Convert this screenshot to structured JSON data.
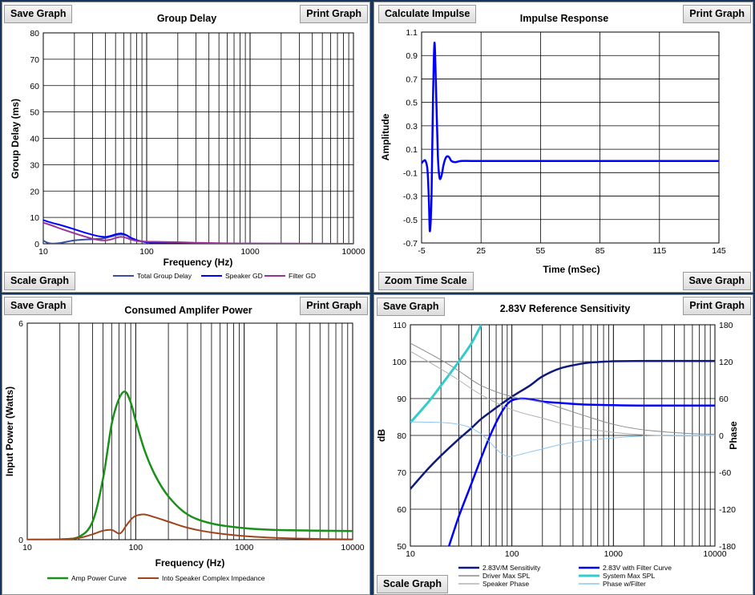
{
  "panels": [
    {
      "title": "Group Delay",
      "buttons": {
        "top_left": "Save Graph",
        "top_right": "Print Graph",
        "bottom_left": "Scale Graph"
      }
    },
    {
      "title": "Impulse Response",
      "buttons": {
        "top_left": "Calculate Impulse",
        "top_right": "Print Graph",
        "bottom_left": "Zoom  Time Scale",
        "bottom_right": "Save Graph"
      }
    },
    {
      "title": "Consumed Amplifer Power",
      "buttons": {
        "top_left": "Save Graph",
        "top_right": "Print Graph"
      }
    },
    {
      "title": "2.83V Reference Sensitivity",
      "buttons": {
        "top_left": "Save Graph",
        "top_right": "Print Graph",
        "bottom_left": "Scale Graph"
      }
    }
  ],
  "chart_data": [
    {
      "type": "line",
      "title": "Group Delay",
      "xlabel": "Frequency (Hz)",
      "ylabel": "Group Delay (ms)",
      "x_scale": "log",
      "xlim": [
        10,
        10000
      ],
      "ylim": [
        0,
        80
      ],
      "x_ticks": [
        "10",
        "100",
        "1000",
        "10000"
      ],
      "y_ticks": [
        "0",
        "10",
        "20",
        "30",
        "40",
        "50",
        "60",
        "70",
        "80"
      ],
      "grid": true,
      "legend": "bottom",
      "series": [
        {
          "name": "Total Group Delay",
          "color": "#3a4fa0",
          "width": 2,
          "x": [
            10,
            11,
            12,
            14,
            17,
            20,
            25,
            30,
            35,
            40,
            45,
            50,
            55,
            60,
            65,
            70,
            80,
            90,
            100,
            120,
            150,
            200,
            300,
            500,
            1000,
            10000
          ],
          "y": [
            1.2,
            0.4,
            0.1,
            0.2,
            0.8,
            1.3,
            1.6,
            1.7,
            1.9,
            2.2,
            2.7,
            3.2,
            3.5,
            3.4,
            3.0,
            2.3,
            1.4,
            0.9,
            0.6,
            0.4,
            0.25,
            0.15,
            0.08,
            0.04,
            0.02,
            0
          ]
        },
        {
          "name": "Speaker GD",
          "color": "#0000ff",
          "width": 2,
          "x": [
            10,
            12,
            15,
            20,
            25,
            30,
            35,
            40,
            45,
            50,
            55,
            60,
            65,
            70,
            80,
            90,
            100,
            120,
            150,
            200,
            300,
            500,
            1000,
            10000
          ],
          "y": [
            9,
            8,
            7,
            5.5,
            4.3,
            3.4,
            2.8,
            2.6,
            3.0,
            3.6,
            3.9,
            3.7,
            3.1,
            2.3,
            1.4,
            0.9,
            0.6,
            0.4,
            0.25,
            0.15,
            0.08,
            0.04,
            0.02,
            0
          ]
        },
        {
          "name": "Filter GD",
          "color": "#993399",
          "width": 2,
          "x": [
            10,
            12,
            15,
            20,
            25,
            30,
            35,
            40,
            45,
            50,
            55,
            60,
            65,
            70,
            80,
            90,
            100,
            120,
            150,
            200,
            300,
            500,
            1000,
            10000
          ],
          "y": [
            8,
            7,
            5.6,
            4.0,
            2.8,
            1.9,
            1.4,
            1.3,
            1.6,
            2.2,
            2.6,
            2.5,
            2.1,
            1.6,
            1.1,
            0.9,
            0.8,
            0.75,
            0.7,
            0.6,
            0.4,
            0.25,
            0.12,
            0
          ]
        }
      ]
    },
    {
      "type": "line",
      "title": "Impulse Response",
      "xlabel": "Time (mSec)",
      "ylabel": "Amplitude",
      "x_scale": "linear",
      "xlim": [
        -5,
        145
      ],
      "ylim": [
        -0.7,
        1.1
      ],
      "x_ticks": [
        "-5",
        "25",
        "55",
        "85",
        "115",
        "145"
      ],
      "y_ticks": [
        "-0.7",
        "-0.5",
        "-0.3",
        "-0.1",
        "0.1",
        "0.3",
        "0.5",
        "0.7",
        "0.9",
        "1.1"
      ],
      "grid": true,
      "series": [
        {
          "name": "",
          "color": "#0000ff",
          "width": 2.5,
          "x": [
            -5,
            -4,
            -3,
            -2,
            -1.3,
            -0.8,
            0,
            0.8,
            1.5,
            2.3,
            3.2,
            4,
            5,
            6,
            7,
            8,
            9,
            10,
            12,
            15,
            20,
            30,
            145
          ],
          "y": [
            -0.02,
            0,
            0.0,
            -0.08,
            -0.35,
            -0.6,
            -0.3,
            0.55,
            1.01,
            0.6,
            0.05,
            -0.14,
            -0.13,
            -0.04,
            0.02,
            0.04,
            0.03,
            0.0,
            -0.01,
            0.0,
            0,
            0,
            0
          ]
        }
      ]
    },
    {
      "type": "line",
      "title": "Consumed Amplifer Power",
      "xlabel": "Frequency (Hz)",
      "ylabel": "Input Power (Watts)",
      "x_scale": "log",
      "xlim": [
        10,
        10000
      ],
      "ylim": [
        0,
        6
      ],
      "x_ticks": [
        "10",
        "100",
        "1000",
        "10000"
      ],
      "y_ticks": [
        "0",
        "6"
      ],
      "grid": true,
      "legend": "bottom",
      "series": [
        {
          "name": "Amp Power Curve",
          "color": "#1a8f1a",
          "width": 2.5,
          "x": [
            10,
            20,
            30,
            40,
            50,
            60,
            70,
            80,
            90,
            100,
            120,
            150,
            200,
            300,
            500,
            1000,
            2000,
            5000,
            10000
          ],
          "y": [
            0,
            0.01,
            0.08,
            0.5,
            1.7,
            3.2,
            3.9,
            4.1,
            3.8,
            3.3,
            2.5,
            1.8,
            1.2,
            0.7,
            0.45,
            0.32,
            0.27,
            0.25,
            0.24
          ]
        },
        {
          "name": "Into Speaker Complex Impedance",
          "color": "#a0441a",
          "width": 2,
          "x": [
            10,
            20,
            30,
            40,
            50,
            60,
            65,
            70,
            75,
            80,
            90,
            100,
            120,
            150,
            200,
            300,
            500,
            1000,
            2000,
            5000,
            10000
          ],
          "y": [
            0,
            0.01,
            0.05,
            0.15,
            0.25,
            0.27,
            0.22,
            0.17,
            0.22,
            0.35,
            0.55,
            0.66,
            0.7,
            0.62,
            0.5,
            0.33,
            0.2,
            0.1,
            0.05,
            0.02,
            0.01
          ]
        }
      ]
    },
    {
      "type": "line",
      "title": "2.83V Reference Sensitivity",
      "xlabel": "",
      "ylabel": "dB",
      "y2label": "Phase",
      "x_scale": "log",
      "xlim": [
        10,
        10000
      ],
      "ylim": [
        50,
        110
      ],
      "y2lim": [
        -180,
        180
      ],
      "x_ticks": [
        "10",
        "100",
        "1000",
        "10000"
      ],
      "y_ticks": [
        "50",
        "60",
        "70",
        "80",
        "90",
        "100",
        "110"
      ],
      "y2_ticks": [
        "-180",
        "-120",
        "-60",
        "0",
        "60",
        "120",
        "180"
      ],
      "grid": true,
      "legend": "bottom",
      "series": [
        {
          "name": "2.83V/M Sensitivity",
          "color": "#0d1a7a",
          "width": 2.5,
          "axis": "left",
          "x": [
            10,
            15,
            20,
            30,
            40,
            50,
            70,
            100,
            150,
            200,
            300,
            500,
            700,
            1000,
            2000,
            5000,
            10000
          ],
          "y": [
            65.5,
            71,
            74.5,
            79,
            82,
            84.5,
            87.5,
            90.5,
            93.5,
            96,
            98.2,
            99.5,
            99.9,
            100.1,
            100.2,
            100.2,
            100.2
          ]
        },
        {
          "name": "2.83V with Filter Curve",
          "color": "#0000ff",
          "width": 2.5,
          "axis": "left",
          "x": [
            24,
            30,
            40,
            50,
            60,
            70,
            80,
            90,
            100,
            120,
            150,
            200,
            300,
            500,
            1000,
            2000,
            5000,
            10000
          ],
          "y": [
            50,
            58,
            67,
            74,
            79.5,
            83.5,
            86.5,
            88.5,
            89.5,
            90,
            89.8,
            89.2,
            88.8,
            88.4,
            88.2,
            88.1,
            88.1,
            88.1
          ]
        },
        {
          "name": "Driver Max SPL",
          "color": "#8a8a8a",
          "width": 1,
          "axis": "left",
          "x": [
            10,
            20,
            30,
            50,
            100,
            200,
            300,
            500,
            1000,
            2000,
            5000,
            10000
          ],
          "y": [
            105,
            100.5,
            97.5,
            93.5,
            90.5,
            89,
            87.5,
            85.5,
            83,
            81.5,
            80.6,
            80.3
          ]
        },
        {
          "name": "System Max SPL",
          "color": "#33cccc",
          "width": 3,
          "axis": "left",
          "x": [
            10,
            15,
            20,
            30,
            40,
            50
          ],
          "y": [
            83.5,
            89,
            93.5,
            100,
            105,
            110
          ]
        },
        {
          "name": "Speaker Phase",
          "color": "#b0b0b0",
          "width": 1,
          "axis": "right",
          "x": [
            10,
            20,
            30,
            50,
            100,
            200,
            300,
            500,
            1000,
            2000,
            5000,
            10000
          ],
          "y": [
            137,
            108,
            90,
            66,
            42,
            28,
            20,
            12,
            5,
            1,
            -1,
            0
          ]
        },
        {
          "name": "Phase w/Filter",
          "color": "#8cc6f0",
          "width": 1,
          "axis": "right",
          "x": [
            10,
            20,
            30,
            40,
            50,
            60,
            70,
            80,
            90,
            100,
            120,
            150,
            200,
            300,
            500,
            1000,
            2000,
            5000,
            10000
          ],
          "y": [
            22,
            21,
            18,
            12,
            2,
            -10,
            -22,
            -30,
            -34,
            -34,
            -31,
            -27,
            -22,
            -15,
            -9,
            -4,
            -1,
            0,
            0
          ]
        }
      ]
    }
  ]
}
